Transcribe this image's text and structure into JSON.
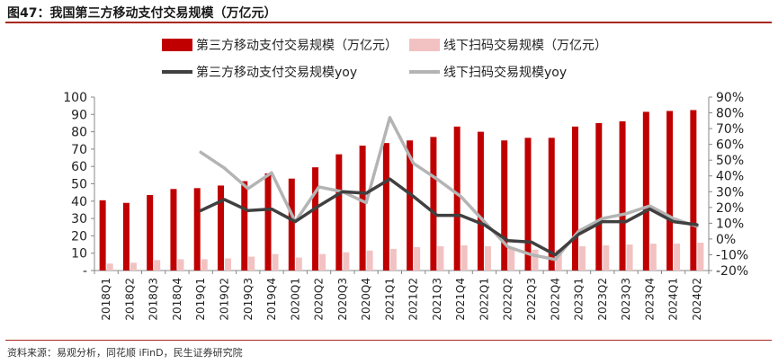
{
  "title": "图47：我国第三方移动支付交易规模（万亿元）",
  "source": "资料来源：易观分析，同花顺 iFinD，民生证券研究院",
  "colors": {
    "bar_main": "#c00000",
    "bar_offline": "#f2c2c2",
    "line_main": "#404040",
    "line_offline": "#b4b4b4",
    "rule": "#a8281f"
  },
  "chart_data": {
    "type": "bar",
    "categories": [
      "2018Q1",
      "2018Q2",
      "2018Q3",
      "2018Q4",
      "2019Q1",
      "2019Q2",
      "2019Q3",
      "2019Q4",
      "2020Q1",
      "2020Q2",
      "2020Q3",
      "2020Q4",
      "2021Q1",
      "2021Q2",
      "2021Q3",
      "2021Q4",
      "2022Q1",
      "2022Q2",
      "2022Q3",
      "2022Q4",
      "2023Q1",
      "2023Q2",
      "2023Q3",
      "2023Q4",
      "2024Q1",
      "2024Q2"
    ],
    "legend_position": "top",
    "series": [
      {
        "name": "第三方移动支付交易规模（万亿元）",
        "kind": "bar",
        "axis": "left",
        "values": [
          40.5,
          39.0,
          43.5,
          47.0,
          47.5,
          49.0,
          51.5,
          56.0,
          53.0,
          59.5,
          67.0,
          72.0,
          73.5,
          75.0,
          77.0,
          83.0,
          80.0,
          75.0,
          76.5,
          76.5,
          83.0,
          85.0,
          86.0,
          91.5,
          92.0,
          92.5
        ]
      },
      {
        "name": "线下扫码交易规模（万亿元）",
        "kind": "bar",
        "axis": "left",
        "values": [
          4.0,
          4.5,
          6.0,
          6.5,
          6.5,
          7.0,
          8.0,
          9.5,
          7.5,
          9.5,
          10.5,
          11.5,
          12.5,
          13.5,
          14.0,
          14.5,
          14.0,
          13.5,
          12.0,
          12.0,
          14.0,
          14.5,
          15.0,
          15.5,
          15.5,
          16.0
        ]
      },
      {
        "name": "第三方移动支付交易规模yoy",
        "kind": "line",
        "axis": "right",
        "values": [
          null,
          null,
          null,
          null,
          18,
          25,
          18,
          19,
          11,
          21,
          30,
          29,
          38,
          27,
          15,
          15,
          9,
          -1,
          -2,
          -10,
          3,
          11,
          11,
          19,
          11,
          9
        ]
      },
      {
        "name": "线下扫码交易规模yoy",
        "kind": "line",
        "axis": "right",
        "values": [
          null,
          null,
          null,
          null,
          55,
          45,
          32,
          42,
          11,
          33,
          30,
          23,
          77,
          48,
          38,
          27,
          11,
          -5,
          -10,
          -13,
          5,
          13,
          16,
          21,
          13,
          8
        ]
      }
    ],
    "y_left": {
      "min": 0,
      "max": 100,
      "step": 10,
      "tick_labels": [
        "-",
        "10",
        "20",
        "30",
        "40",
        "50",
        "60",
        "70",
        "80",
        "90",
        "100"
      ]
    },
    "y_right": {
      "min": -20,
      "max": 90,
      "step": 10,
      "tick_labels": [
        "-20%",
        "-10%",
        "0%",
        "10%",
        "20%",
        "30%",
        "40%",
        "50%",
        "60%",
        "70%",
        "80%",
        "90%"
      ]
    },
    "grid": false
  }
}
